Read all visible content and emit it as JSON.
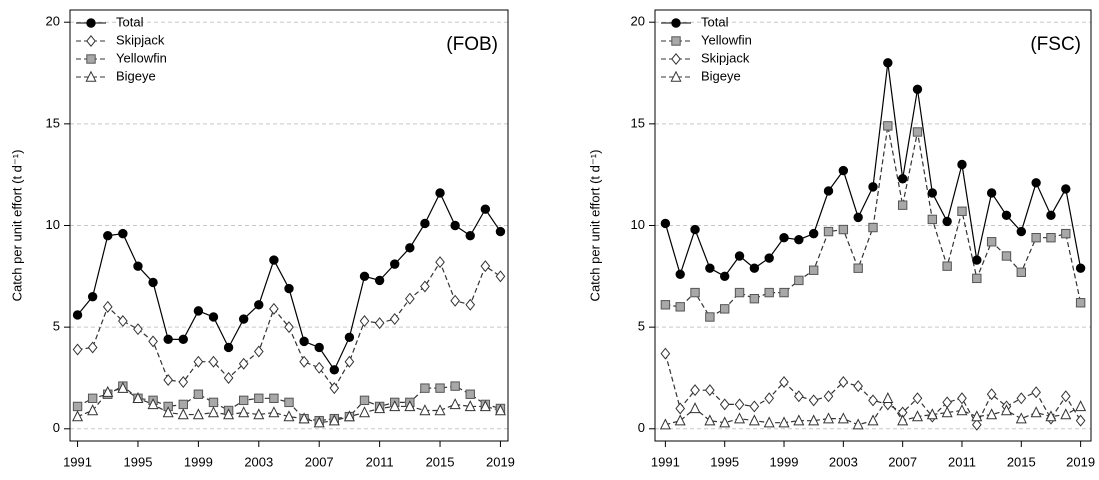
{
  "chart_data": [
    {
      "type": "line",
      "annotation": "(FOB)",
      "y_label": "Catch per unit effort (t d⁻¹)",
      "x": [
        1991,
        1992,
        1993,
        1994,
        1995,
        1996,
        1997,
        1998,
        1999,
        2000,
        2001,
        2002,
        2003,
        2004,
        2005,
        2006,
        2007,
        2008,
        2009,
        2010,
        2011,
        2012,
        2013,
        2014,
        2015,
        2016,
        2017,
        2018,
        2019
      ],
      "xlim": [
        1990.5,
        2019.5
      ],
      "xticks": [
        1991,
        1995,
        1999,
        2003,
        2007,
        2011,
        2015,
        2019
      ],
      "ylim": [
        -0.6,
        20.6
      ],
      "yticks": [
        0,
        5,
        10,
        15,
        20
      ],
      "grid": true,
      "legend": "upper left",
      "series": [
        {
          "name": "Total",
          "color": "#000000",
          "marker": "circle",
          "dash": "solid",
          "values": [
            5.6,
            6.5,
            9.5,
            9.6,
            8.0,
            7.2,
            4.4,
            4.4,
            5.8,
            5.5,
            4.0,
            5.4,
            6.1,
            8.3,
            6.9,
            4.3,
            4.0,
            2.9,
            4.5,
            7.5,
            7.3,
            8.1,
            8.9,
            10.1,
            11.6,
            10.0,
            9.5,
            10.8,
            9.7
          ]
        },
        {
          "name": "Skipjack",
          "color": "#333333",
          "marker": "diamond",
          "dash": "dashed",
          "values": [
            3.9,
            4.0,
            6.0,
            5.3,
            4.9,
            4.3,
            2.4,
            2.3,
            3.3,
            3.3,
            2.5,
            3.2,
            3.8,
            5.9,
            5.0,
            3.3,
            3.0,
            2.0,
            3.3,
            5.3,
            5.2,
            5.4,
            6.4,
            7.0,
            8.2,
            6.3,
            6.1,
            8.0,
            7.5
          ]
        },
        {
          "name": "Yellowfin",
          "color": "#333333",
          "marker": "square",
          "dash": "dashed",
          "values": [
            1.1,
            1.5,
            1.7,
            2.1,
            1.5,
            1.4,
            1.1,
            1.2,
            1.7,
            1.3,
            0.9,
            1.4,
            1.5,
            1.5,
            1.3,
            0.5,
            0.4,
            0.5,
            0.6,
            1.4,
            1.1,
            1.3,
            1.3,
            2.0,
            2.0,
            2.1,
            1.7,
            1.2,
            1.0
          ]
        },
        {
          "name": "Bigeye",
          "color": "#333333",
          "marker": "triangle",
          "dash": "dashed",
          "values": [
            0.6,
            0.9,
            1.8,
            2.0,
            1.5,
            1.2,
            0.8,
            0.7,
            0.7,
            0.8,
            0.7,
            0.8,
            0.7,
            0.8,
            0.6,
            0.5,
            0.3,
            0.4,
            0.6,
            0.8,
            1.0,
            1.1,
            1.1,
            0.9,
            0.9,
            1.2,
            1.1,
            1.1,
            0.9
          ]
        }
      ]
    },
    {
      "type": "line",
      "annotation": "(FSC)",
      "y_label": "Catch per unit effort (t d⁻¹)",
      "x": [
        1991,
        1992,
        1993,
        1994,
        1995,
        1996,
        1997,
        1998,
        1999,
        2000,
        2001,
        2002,
        2003,
        2004,
        2005,
        2006,
        2007,
        2008,
        2009,
        2010,
        2011,
        2012,
        2013,
        2014,
        2015,
        2016,
        2017,
        2018,
        2019
      ],
      "xlim": [
        1990.3,
        2019.7
      ],
      "xticks": [
        1991,
        1995,
        1999,
        2003,
        2007,
        2011,
        2015,
        2019
      ],
      "ylim": [
        -0.6,
        20.6
      ],
      "yticks": [
        0,
        5,
        10,
        15,
        20
      ],
      "grid": true,
      "legend": "upper left",
      "series": [
        {
          "name": "Total",
          "color": "#000000",
          "marker": "circle",
          "dash": "solid",
          "values": [
            10.1,
            7.6,
            9.8,
            7.9,
            7.5,
            8.5,
            7.9,
            8.4,
            9.4,
            9.3,
            9.6,
            11.7,
            12.7,
            10.4,
            11.9,
            18.0,
            12.3,
            16.7,
            11.6,
            10.2,
            13.0,
            8.3,
            11.6,
            10.5,
            9.7,
            12.1,
            10.5,
            11.8,
            7.9
          ]
        },
        {
          "name": "Yellowfin",
          "color": "#333333",
          "marker": "square",
          "dash": "dashed",
          "values": [
            6.1,
            6.0,
            6.7,
            5.5,
            5.9,
            6.7,
            6.4,
            6.7,
            6.7,
            7.3,
            7.8,
            9.7,
            9.8,
            7.9,
            9.9,
            14.9,
            11.0,
            14.6,
            10.3,
            8.0,
            10.7,
            7.4,
            9.2,
            8.5,
            7.7,
            9.4,
            9.4,
            9.6,
            6.2
          ]
        },
        {
          "name": "Skipjack",
          "color": "#333333",
          "marker": "diamond",
          "dash": "dashed",
          "values": [
            3.7,
            1.0,
            1.9,
            1.9,
            1.2,
            1.2,
            1.1,
            1.5,
            2.3,
            1.6,
            1.4,
            1.6,
            2.3,
            2.1,
            1.4,
            1.2,
            0.8,
            1.5,
            0.6,
            1.3,
            1.5,
            0.2,
            1.7,
            1.1,
            1.5,
            1.8,
            0.5,
            1.6,
            0.4
          ]
        },
        {
          "name": "Bigeye",
          "color": "#333333",
          "marker": "triangle",
          "dash": "dashed",
          "values": [
            0.2,
            0.4,
            1.0,
            0.4,
            0.3,
            0.5,
            0.4,
            0.3,
            0.3,
            0.4,
            0.4,
            0.5,
            0.5,
            0.2,
            0.4,
            1.5,
            0.4,
            0.6,
            0.7,
            0.8,
            0.9,
            0.6,
            0.7,
            0.9,
            0.5,
            0.8,
            0.6,
            0.7,
            1.1
          ]
        }
      ]
    }
  ]
}
